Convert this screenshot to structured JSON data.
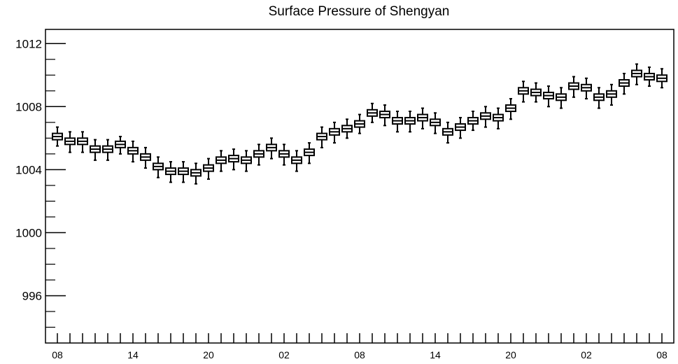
{
  "chart_data": {
    "type": "boxplot",
    "title": "Surface Pressure of Shengyan",
    "xlabel": "",
    "ylabel": "",
    "ylim": [
      993,
      1012.9
    ],
    "yticks": [
      996,
      1000,
      1004,
      1008,
      1012
    ],
    "ytick_labels": [
      "996",
      "1000",
      "1004",
      "1008",
      "1012"
    ],
    "x_tick_labels": [
      {
        "index": 0,
        "label": "08"
      },
      {
        "index": 6,
        "label": "14"
      },
      {
        "index": 12,
        "label": "20"
      },
      {
        "index": 18,
        "label": "02"
      },
      {
        "index": 24,
        "label": "08"
      },
      {
        "index": 30,
        "label": "14"
      },
      {
        "index": 36,
        "label": "20"
      },
      {
        "index": 42,
        "label": "02"
      },
      {
        "index": 48,
        "label": "08"
      }
    ],
    "grid": false,
    "series": [
      {
        "median": [
          1006.1,
          1005.8,
          1005.8,
          1005.3,
          1005.3,
          1005.6,
          1005.2,
          1004.8,
          1004.2,
          1003.9,
          1003.9,
          1003.8,
          1004.1,
          1004.6,
          1004.7,
          1004.6,
          1005.0,
          1005.4,
          1005.0,
          1004.6,
          1005.1,
          1006.1,
          1006.4,
          1006.6,
          1006.9,
          1007.6,
          1007.5,
          1007.1,
          1007.1,
          1007.3,
          1007.0,
          1006.4,
          1006.7,
          1007.1,
          1007.4,
          1007.3,
          1007.9,
          1009.0,
          1008.9,
          1008.7,
          1008.6,
          1009.3,
          1009.2,
          1008.6,
          1008.8,
          1009.5,
          1010.1,
          1009.9,
          1009.8
        ],
        "q1": [
          1005.9,
          1005.6,
          1005.6,
          1005.1,
          1005.1,
          1005.4,
          1005.0,
          1004.6,
          1004.0,
          1003.7,
          1003.7,
          1003.6,
          1003.9,
          1004.4,
          1004.5,
          1004.4,
          1004.8,
          1005.2,
          1004.8,
          1004.4,
          1004.9,
          1005.9,
          1006.2,
          1006.4,
          1006.7,
          1007.4,
          1007.3,
          1006.9,
          1006.9,
          1007.1,
          1006.8,
          1006.2,
          1006.5,
          1006.9,
          1007.2,
          1007.1,
          1007.7,
          1008.8,
          1008.7,
          1008.5,
          1008.4,
          1009.1,
          1009.0,
          1008.4,
          1008.6,
          1009.3,
          1009.9,
          1009.7,
          1009.6
        ],
        "q3": [
          1006.3,
          1006.0,
          1006.0,
          1005.5,
          1005.5,
          1005.8,
          1005.4,
          1005.0,
          1004.4,
          1004.1,
          1004.1,
          1004.0,
          1004.3,
          1004.8,
          1004.9,
          1004.8,
          1005.2,
          1005.6,
          1005.2,
          1004.8,
          1005.3,
          1006.3,
          1006.6,
          1006.8,
          1007.1,
          1007.8,
          1007.7,
          1007.3,
          1007.3,
          1007.5,
          1007.2,
          1006.6,
          1006.9,
          1007.3,
          1007.6,
          1007.5,
          1008.1,
          1009.2,
          1009.1,
          1008.9,
          1008.8,
          1009.5,
          1009.4,
          1008.8,
          1009.0,
          1009.7,
          1010.3,
          1010.1,
          1010.0
        ],
        "whisker_low": [
          1005.5,
          1005.1,
          1005.1,
          1004.6,
          1004.6,
          1005.0,
          1004.5,
          1004.1,
          1003.5,
          1003.2,
          1003.2,
          1003.1,
          1003.4,
          1003.9,
          1004.0,
          1003.9,
          1004.3,
          1004.7,
          1004.3,
          1003.9,
          1004.4,
          1005.4,
          1005.7,
          1006.0,
          1006.3,
          1007.0,
          1006.8,
          1006.4,
          1006.4,
          1006.6,
          1006.3,
          1005.7,
          1006.0,
          1006.5,
          1006.7,
          1006.6,
          1007.2,
          1008.3,
          1008.3,
          1008.0,
          1007.9,
          1008.6,
          1008.5,
          1007.9,
          1008.1,
          1008.8,
          1009.4,
          1009.3,
          1009.2
        ],
        "whisker_high": [
          1006.7,
          1006.4,
          1006.4,
          1005.9,
          1005.9,
          1006.1,
          1005.8,
          1005.4,
          1004.8,
          1004.5,
          1004.5,
          1004.4,
          1004.7,
          1005.2,
          1005.3,
          1005.2,
          1005.6,
          1006.0,
          1005.6,
          1005.2,
          1005.7,
          1006.7,
          1007.0,
          1007.2,
          1007.5,
          1008.2,
          1008.1,
          1007.7,
          1007.7,
          1007.9,
          1007.6,
          1007.0,
          1007.3,
          1007.7,
          1008.0,
          1007.9,
          1008.5,
          1009.6,
          1009.5,
          1009.3,
          1009.2,
          1009.9,
          1009.8,
          1009.2,
          1009.4,
          1010.1,
          1010.7,
          1010.5,
          1010.4
        ]
      }
    ]
  }
}
